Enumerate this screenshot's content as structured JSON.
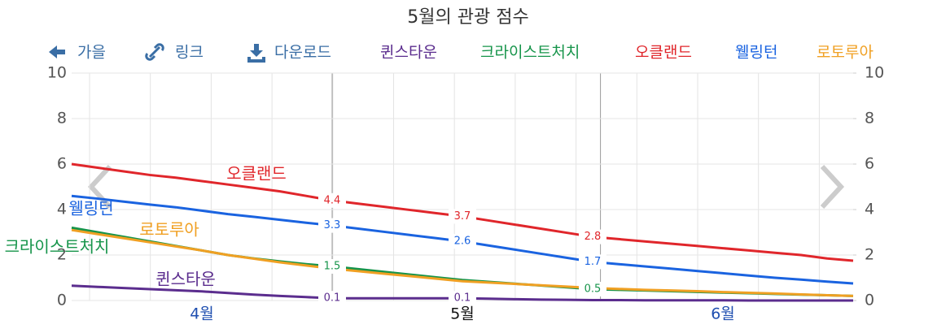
{
  "toolbar": [
    "가을",
    "링크",
    "다운로드"
  ],
  "chart_data": {
    "type": "line",
    "title": "5월의 관광 점수",
    "categories": [
      null,
      null,
      null,
      null,
      null,
      "4월",
      null,
      null,
      null,
      null,
      null,
      null,
      null,
      null,
      null,
      "5월",
      null,
      null,
      null,
      null,
      null,
      null,
      null,
      null,
      null,
      "6월",
      null,
      null,
      null,
      null,
      null
    ],
    "ylim": [
      0,
      10
    ],
    "yticks": [
      0,
      2,
      4,
      6,
      8,
      10
    ],
    "y2lim": [
      0,
      10
    ],
    "y2ticks": [
      0,
      2,
      4,
      6,
      8,
      10
    ],
    "grid": true,
    "series": [
      {
        "name": "퀸스타운",
        "color": "#5b2d8e",
        "label_points": [
          10,
          15
        ],
        "values": [
          0.65,
          0.6,
          0.55,
          0.5,
          0.45,
          0.4,
          0.33,
          0.26,
          0.2,
          0.15,
          0.1,
          0.1,
          0.1,
          0.1,
          0.1,
          0.1,
          0.08,
          0.06,
          0.04,
          0.03,
          0.02,
          0.02,
          0.01,
          0.01,
          0.01,
          0.01,
          0,
          0,
          0,
          0,
          0
        ]
      },
      {
        "name": "크라이스트처치",
        "color": "#16944a",
        "label_points": [
          10,
          20
        ],
        "values": [
          3.2,
          3.0,
          2.8,
          2.6,
          2.4,
          2.2,
          2.0,
          1.85,
          1.72,
          1.6,
          1.5,
          1.38,
          1.26,
          1.14,
          1.02,
          0.9,
          0.82,
          0.74,
          0.66,
          0.58,
          0.5,
          0.47,
          0.44,
          0.41,
          0.38,
          0.35,
          0.32,
          0.29,
          0.26,
          0.23,
          0.2
        ]
      },
      {
        "name": "오클랜드",
        "color": "#e0262b",
        "label_points": [
          10,
          15,
          20
        ],
        "values": [
          6.0,
          5.84,
          5.68,
          5.52,
          5.4,
          5.25,
          5.1,
          4.95,
          4.8,
          4.6,
          4.4,
          4.26,
          4.12,
          3.98,
          3.84,
          3.7,
          3.52,
          3.34,
          3.16,
          2.98,
          2.8,
          2.7,
          2.6,
          2.5,
          2.4,
          2.3,
          2.2,
          2.1,
          2.0,
          1.85,
          1.75
        ]
      },
      {
        "name": "웰링턴",
        "color": "#1a63e0",
        "label_points": [
          10,
          15,
          20
        ],
        "values": [
          4.6,
          4.48,
          4.35,
          4.22,
          4.1,
          3.95,
          3.8,
          3.68,
          3.55,
          3.42,
          3.3,
          3.16,
          3.02,
          2.88,
          2.74,
          2.6,
          2.42,
          2.24,
          2.06,
          1.88,
          1.7,
          1.6,
          1.5,
          1.4,
          1.3,
          1.2,
          1.1,
          1.0,
          0.92,
          0.83,
          0.75
        ]
      },
      {
        "name": "로토루아",
        "color": "#f0a023",
        "label_points": [],
        "values": [
          3.1,
          2.92,
          2.74,
          2.56,
          2.38,
          2.2,
          2.0,
          1.84,
          1.68,
          1.54,
          1.4,
          1.29,
          1.18,
          1.07,
          0.96,
          0.85,
          0.79,
          0.73,
          0.67,
          0.61,
          0.55,
          0.51,
          0.47,
          0.44,
          0.41,
          0.37,
          0.34,
          0.31,
          0.27,
          0.23,
          0.2
        ]
      }
    ]
  }
}
